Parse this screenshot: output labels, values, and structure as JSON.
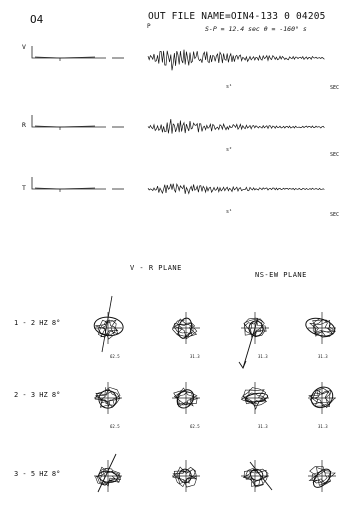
{
  "header": {
    "sheet_label": "O4",
    "title": "OUT FILE NAME=OIN4-133   0 04205",
    "subtitle": "S-P = 12.4 sec   θ = -160° s",
    "p_marker": "P"
  },
  "traces": [
    {
      "label": "V",
      "time_unit": "SEC",
      "s_marker": "s¹"
    },
    {
      "label": "R",
      "time_unit": "SEC",
      "s_marker": "s²"
    },
    {
      "label": "T",
      "time_unit": "SEC",
      "s_marker": "s¹"
    }
  ],
  "planes": {
    "vr_title": "V - R  PLANE",
    "nsew_title": "NS-EW  PLANE"
  },
  "bands": [
    {
      "label": "1 - 2 HZ  8°",
      "values": [
        "62.5",
        "31.3",
        "31.3",
        "31.3"
      ]
    },
    {
      "label": "2 - 3 HZ  8°",
      "values": [
        "62.5",
        "62.5",
        "31.3",
        "31.3"
      ]
    },
    {
      "label": "3 - 5 HZ  8°",
      "values": [
        "",
        "",
        "",
        ""
      ]
    }
  ]
}
